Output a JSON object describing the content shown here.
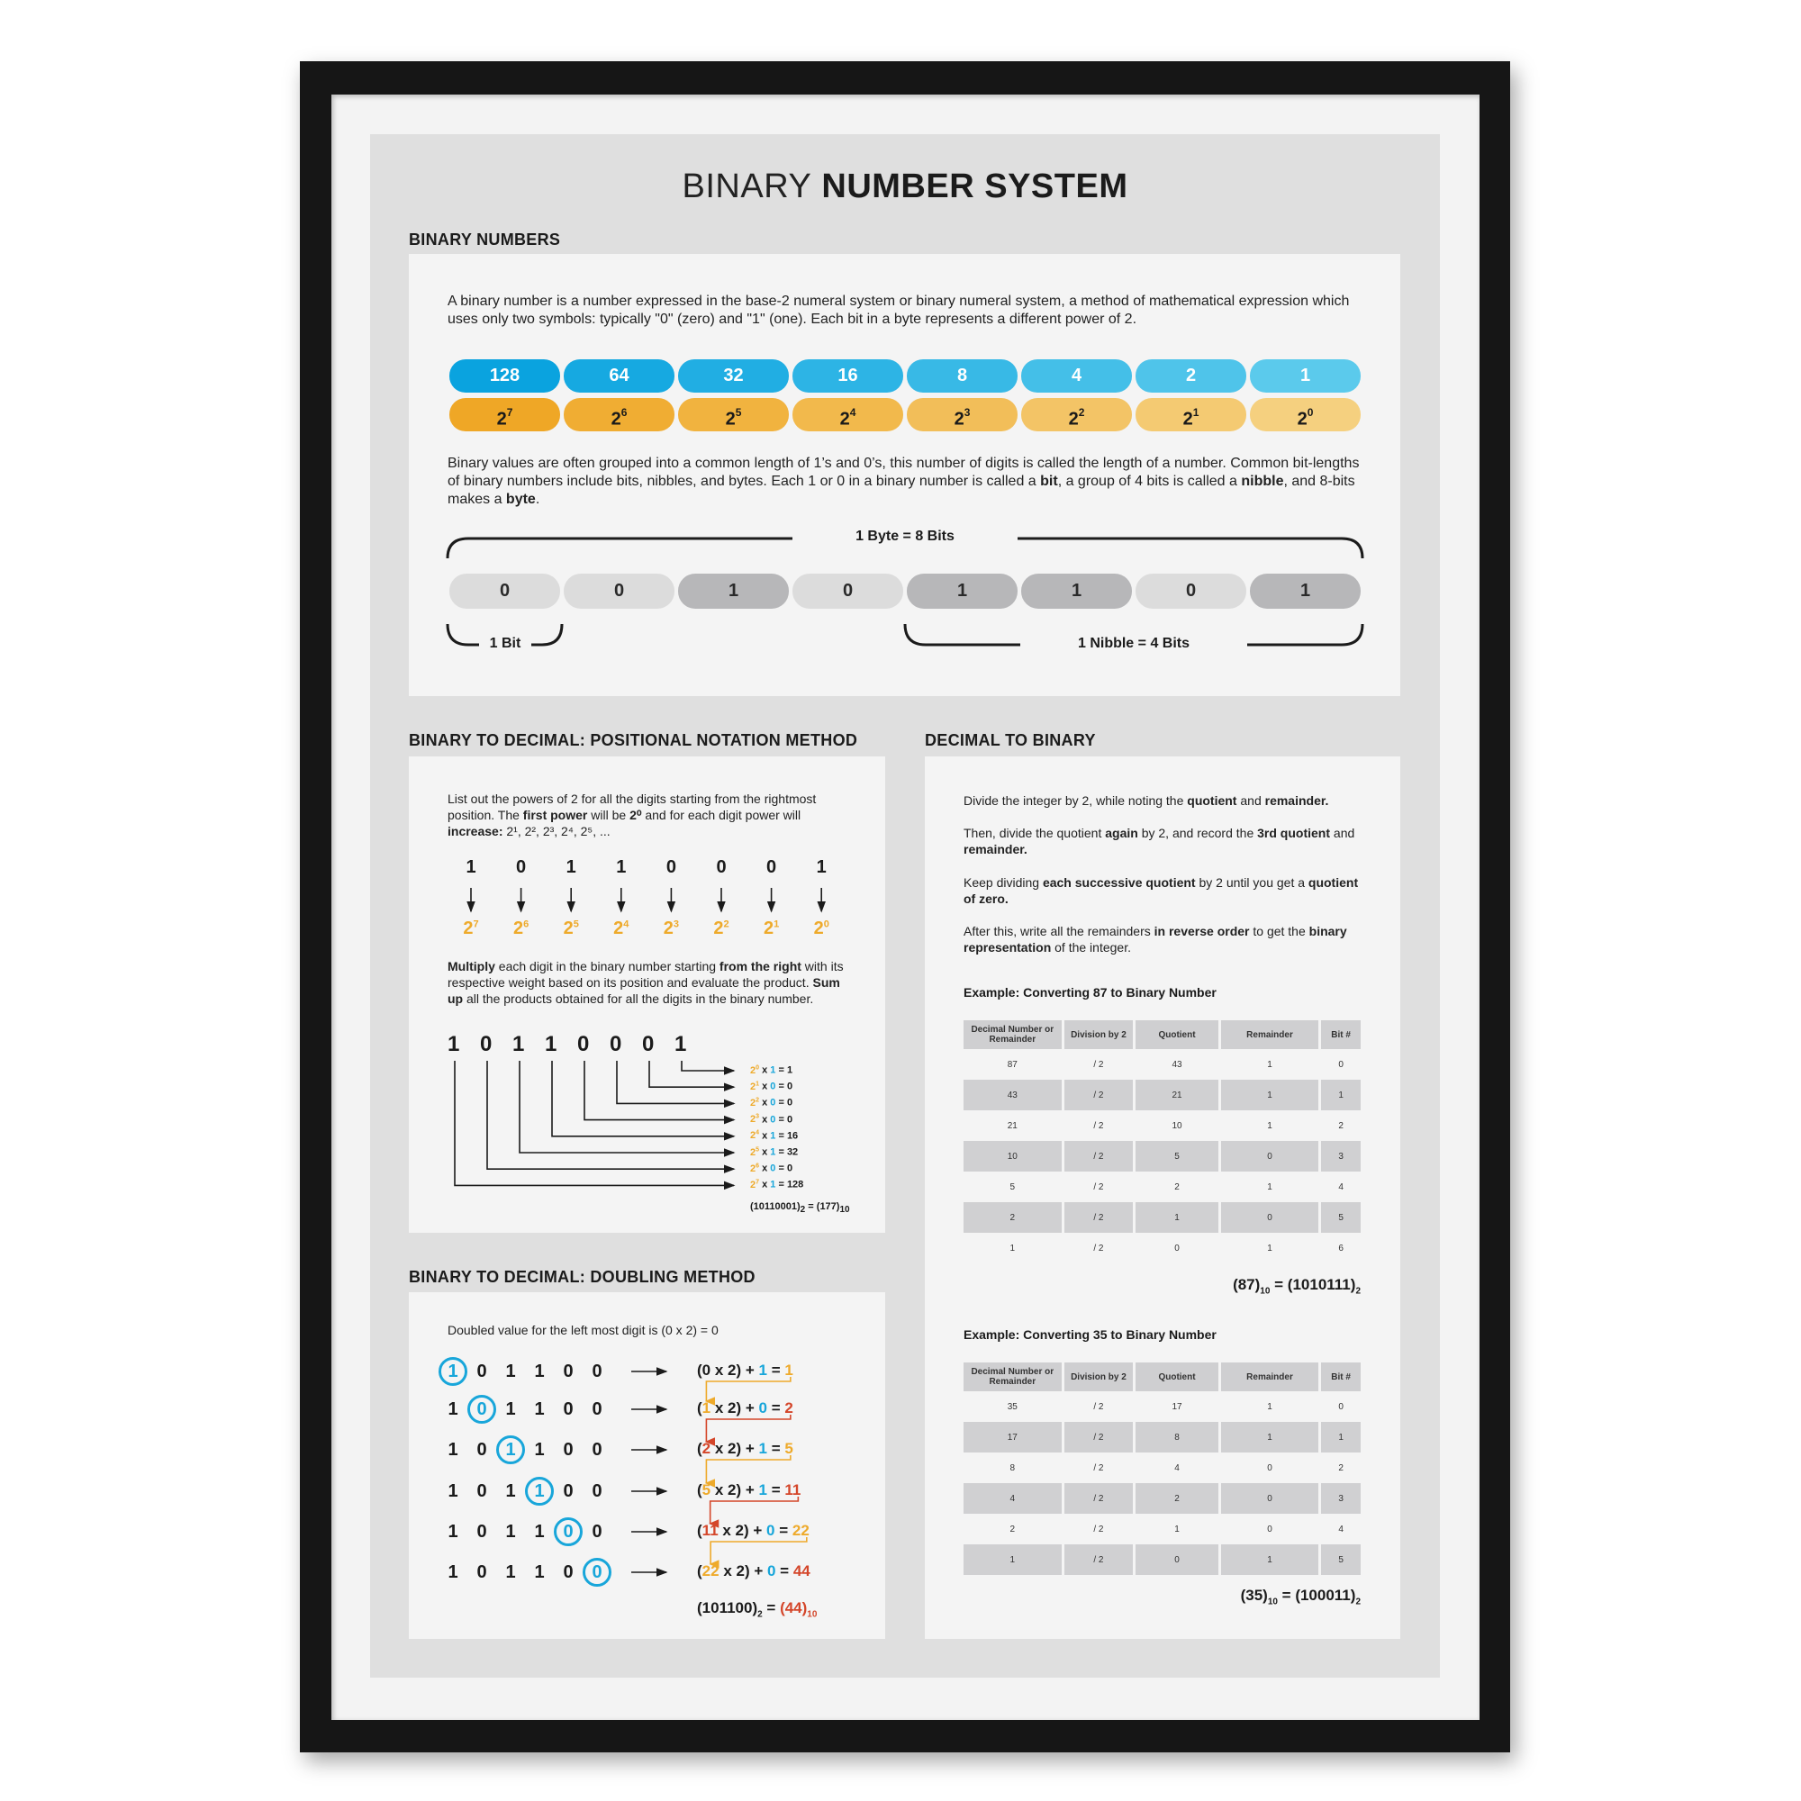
{
  "title": {
    "light": "BINARY",
    "bold1": "NUMBER",
    "bold2": "SYSTEM"
  },
  "binary_numbers": {
    "heading": "BINARY NUMBERS",
    "intro": "A binary number is a number expressed in the base-2 numeral system or binary numeral system, a method of mathematical expression which uses only two symbols: typically \"0\" (zero) and \"1\" (one). Each bit in a byte represents a different power of 2.",
    "place_values": [
      {
        "value": "128",
        "base": "2",
        "exp": "7"
      },
      {
        "value": "64",
        "base": "2",
        "exp": "6"
      },
      {
        "value": "32",
        "base": "2",
        "exp": "5"
      },
      {
        "value": "16",
        "base": "2",
        "exp": "4"
      },
      {
        "value": "8",
        "base": "2",
        "exp": "3"
      },
      {
        "value": "4",
        "base": "2",
        "exp": "2"
      },
      {
        "value": "2",
        "base": "2",
        "exp": "1"
      },
      {
        "value": "1",
        "base": "2",
        "exp": "0"
      }
    ],
    "colors": {
      "blue_start": "#0aa3df",
      "blue_end": "#5bcaec",
      "orange_start": "#efa726",
      "orange_end": "#f5d07f",
      "bit_zero": "#dcdcdc",
      "bit_one": "#b7b7b9"
    },
    "grouping": [
      {
        "t": "Binary values are often grouped into a common length of 1’s and 0’s, this number of digits is called the length of a number. Common bit-lengths of binary numbers include bits, nibbles, and bytes. Each 1 or 0 in a binary number is called a "
      },
      {
        "t": "bit",
        "b": true
      },
      {
        "t": ", a group of 4 bits is called a "
      },
      {
        "t": "nibble",
        "b": true
      },
      {
        "t": ", and 8-bits makes a "
      },
      {
        "t": "byte",
        "b": true
      },
      {
        "t": "."
      }
    ],
    "byte_label": "1 Byte = 8 Bits",
    "bits": [
      "0",
      "0",
      "1",
      "0",
      "1",
      "1",
      "0",
      "1"
    ],
    "bit_label": "1 Bit",
    "nibble_label": "1 Nibble = 4 Bits"
  },
  "positional": {
    "heading": "BINARY TO DECIMAL: POSITIONAL NOTATION METHOD",
    "intro": [
      {
        "t": "List out the powers of 2 for all the digits starting from the rightmost position. The "
      },
      {
        "t": "first power",
        "b": true
      },
      {
        "t": " will be "
      },
      {
        "t": "2⁰",
        "b": true
      },
      {
        "t": " and for each digit power will "
      },
      {
        "t": "increase:",
        "b": true
      },
      {
        "t": " 2¹, 2², 2³, 2⁴, 2⁵, ..."
      }
    ],
    "digits": [
      "1",
      "0",
      "1",
      "1",
      "0",
      "0",
      "0",
      "1"
    ],
    "exponents": [
      "7",
      "6",
      "5",
      "4",
      "3",
      "2",
      "1",
      "0"
    ],
    "multiply": [
      {
        "t": "Multiply",
        "b": true
      },
      {
        "t": " each digit in the binary number starting "
      },
      {
        "t": "from the right",
        "b": true
      },
      {
        "t": " with its respective weight based on its position and evaluate the product. "
      },
      {
        "t": "Sum up",
        "b": true
      },
      {
        "t": " all the products obtained for all the digits in the binary number."
      }
    ],
    "products": [
      {
        "exp": "0",
        "digit": "1",
        "result": "1"
      },
      {
        "exp": "1",
        "digit": "0",
        "result": "0"
      },
      {
        "exp": "2",
        "digit": "0",
        "result": "0"
      },
      {
        "exp": "3",
        "digit": "0",
        "result": "0"
      },
      {
        "exp": "4",
        "digit": "1",
        "result": "16"
      },
      {
        "exp": "5",
        "digit": "1",
        "result": "32"
      },
      {
        "exp": "6",
        "digit": "0",
        "result": "0"
      },
      {
        "exp": "7",
        "digit": "1",
        "result": "128"
      }
    ],
    "result": {
      "binary": "(10110001)",
      "base_a": "2",
      "decimal": "(177)",
      "base_b": "10"
    }
  },
  "doubling": {
    "heading": "BINARY TO DECIMAL: DOUBLING METHOD",
    "intro": "Doubled value for the left most digit is (0 x 2) = 0",
    "digits": [
      "1",
      "0",
      "1",
      "1",
      "0",
      "0"
    ],
    "steps": [
      {
        "prev": "0",
        "digit": "1",
        "result": "1",
        "result_color": "orange",
        "prev_color": "black"
      },
      {
        "prev": "1",
        "digit": "0",
        "result": "2",
        "result_color": "red",
        "prev_color": "orange"
      },
      {
        "prev": "2",
        "digit": "1",
        "result": "5",
        "result_color": "orange",
        "prev_color": "red"
      },
      {
        "prev": "5",
        "digit": "1",
        "result": "11",
        "result_color": "red",
        "prev_color": "orange"
      },
      {
        "prev": "11",
        "digit": "0",
        "result": "22",
        "result_color": "orange",
        "prev_color": "red"
      },
      {
        "prev": "22",
        "digit": "0",
        "result": "44",
        "result_color": "red",
        "prev_color": "orange"
      }
    ],
    "result": {
      "binary": "(101100)",
      "base_a": "2",
      "decimal": "(44)",
      "base_b": "10"
    }
  },
  "decimal_to_binary": {
    "heading": "DECIMAL TO BINARY",
    "steps": [
      [
        {
          "t": "Divide the integer by 2, while noting the "
        },
        {
          "t": "quotient",
          "b": true
        },
        {
          "t": " and "
        },
        {
          "t": "remainder.",
          "b": true
        }
      ],
      [
        {
          "t": "Then, divide the quotient "
        },
        {
          "t": "again",
          "b": true
        },
        {
          "t": " by 2, and record the "
        },
        {
          "t": "3rd quotient",
          "b": true
        },
        {
          "t": " and "
        },
        {
          "t": "remainder.",
          "b": true
        }
      ],
      [
        {
          "t": "Keep dividing "
        },
        {
          "t": "each successive quotient",
          "b": true
        },
        {
          "t": " by 2 until you get a "
        },
        {
          "t": "quotient of zero.",
          "b": true
        }
      ],
      [
        {
          "t": "After this, write all the remainders "
        },
        {
          "t": "in reverse order",
          "b": true
        },
        {
          "t": " to get the "
        },
        {
          "t": "binary representation",
          "b": true
        },
        {
          "t": " of the integer."
        }
      ]
    ],
    "columns": [
      "Decimal Number or Remainder",
      "Division by 2",
      "Quotient",
      "Remainder",
      "Bit #"
    ],
    "examples": [
      {
        "title": "Example: Converting 87 to Binary Number",
        "rows": [
          [
            "87",
            "/ 2",
            "43",
            "1",
            "0"
          ],
          [
            "43",
            "/ 2",
            "21",
            "1",
            "1"
          ],
          [
            "21",
            "/ 2",
            "10",
            "1",
            "2"
          ],
          [
            "10",
            "/ 2",
            "5",
            "0",
            "3"
          ],
          [
            "5",
            "/ 2",
            "2",
            "1",
            "4"
          ],
          [
            "2",
            "/ 2",
            "1",
            "0",
            "5"
          ],
          [
            "1",
            "/ 2",
            "0",
            "1",
            "6"
          ]
        ],
        "result": {
          "decimal": "(87)",
          "base_a": "10",
          "binary": "(1010111)",
          "base_b": "2"
        }
      },
      {
        "title": "Example: Converting 35 to Binary Number",
        "rows": [
          [
            "35",
            "/ 2",
            "17",
            "1",
            "0"
          ],
          [
            "17",
            "/ 2",
            "8",
            "1",
            "1"
          ],
          [
            "8",
            "/ 2",
            "4",
            "0",
            "2"
          ],
          [
            "4",
            "/ 2",
            "2",
            "0",
            "3"
          ],
          [
            "2",
            "/ 2",
            "1",
            "0",
            "4"
          ],
          [
            "1",
            "/ 2",
            "0",
            "1",
            "5"
          ]
        ],
        "result": {
          "decimal": "(35)",
          "base_a": "10",
          "binary": "(100011)",
          "base_b": "2"
        }
      }
    ]
  }
}
